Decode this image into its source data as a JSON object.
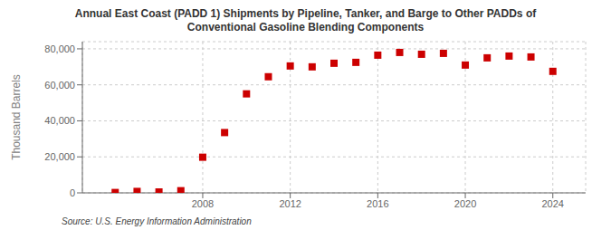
{
  "chart_data": {
    "type": "scatter",
    "title": "Annual East Coast (PADD 1) Shipments by Pipeline, Tanker, and Barge to Other PADDs of\nConventional Gasoline Blending Components",
    "ylabel": "Thousand Barrels",
    "annotations": [
      "Source: U.S. Energy Information Administration"
    ],
    "x": [
      2004,
      2005,
      2006,
      2007,
      2008,
      2009,
      2010,
      2011,
      2012,
      2013,
      2014,
      2015,
      2016,
      2017,
      2018,
      2019,
      2020,
      2021,
      2022,
      2023,
      2024
    ],
    "values": [
      200,
      800,
      500,
      1200,
      19800,
      33500,
      55000,
      64500,
      70500,
      70000,
      72000,
      72500,
      76500,
      78000,
      77000,
      77500,
      71000,
      75000,
      76000,
      75500,
      67500
    ],
    "color": "#cc0000",
    "marker": "square",
    "xlim": [
      2002.5,
      2025.5
    ],
    "ylim": [
      0,
      84000
    ],
    "xticks": [
      2008,
      2012,
      2016,
      2020,
      2024
    ],
    "yticks": [
      0,
      {
        "value": 20000,
        "label": "20,000"
      },
      {
        "value": 40000,
        "label": "40,000"
      },
      {
        "value": 60000,
        "label": "60,000"
      },
      {
        "value": 80000,
        "label": "80,000"
      }
    ],
    "grid": true
  }
}
